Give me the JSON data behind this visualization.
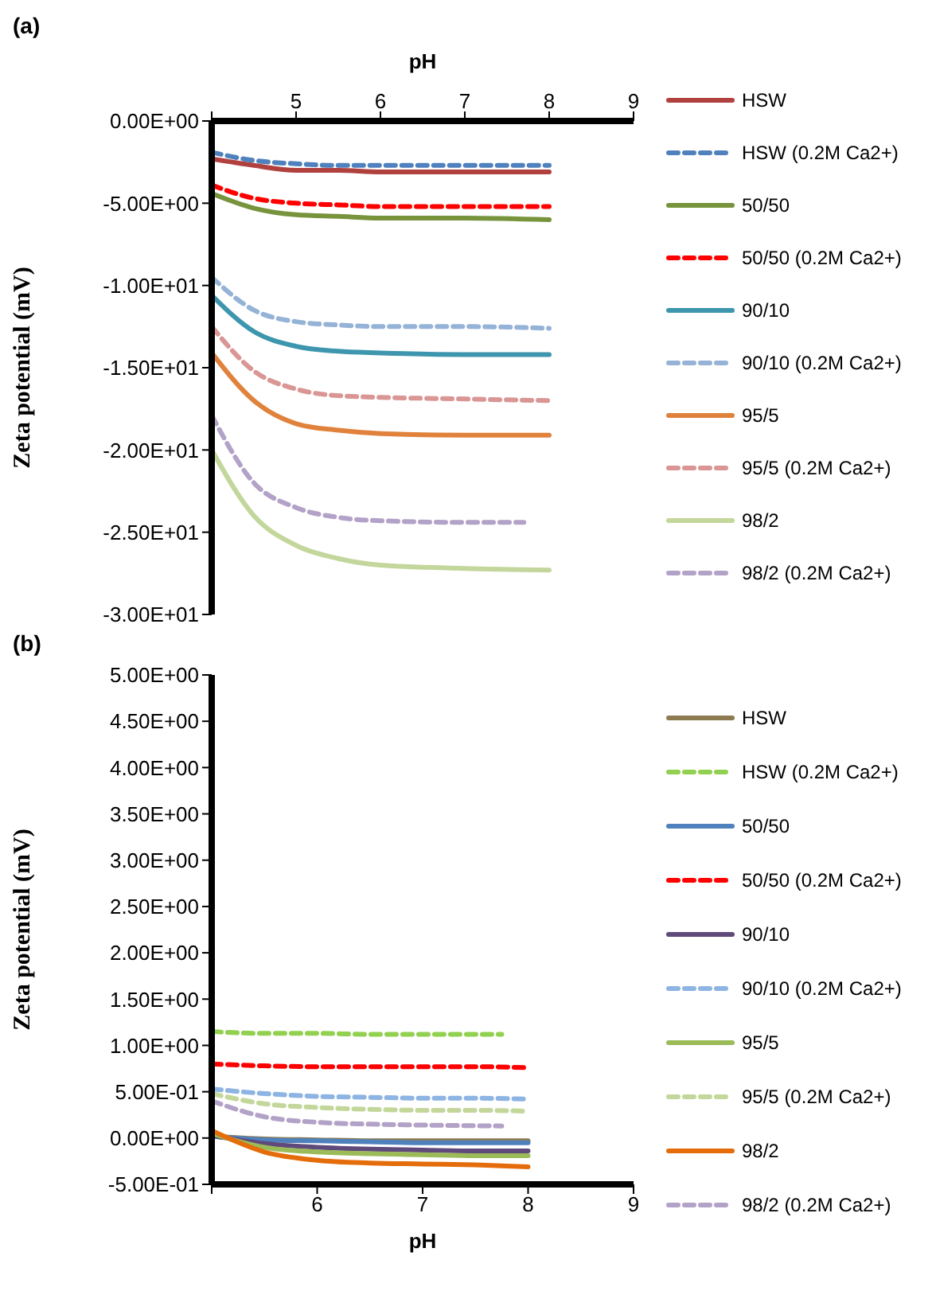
{
  "chart_data": [
    {
      "type": "line",
      "title": "(a)",
      "xlabel": "pH",
      "ylabel": "Zeta potential (mV)",
      "xlim": [
        4,
        9
      ],
      "xticks": [
        {
          "value": 4,
          "label": null
        },
        5,
        6,
        7,
        8,
        9
      ],
      "ylim": [
        -30,
        0
      ],
      "yticks": [
        {
          "value": -30,
          "label": "-3.00E+01"
        },
        {
          "value": -25,
          "label": "-2.50E+01"
        },
        {
          "value": -20,
          "label": "-2.00E+01"
        },
        {
          "value": -15,
          "label": "-1.50E+01"
        },
        {
          "value": -10,
          "label": "-1.00E+01"
        },
        {
          "value": -5,
          "label": "-5.00E+00"
        },
        {
          "value": 0,
          "label": "0.00E+00"
        }
      ],
      "legend": "right",
      "x": [
        4,
        4.5,
        5,
        5.5,
        6,
        7,
        8
      ],
      "series": [
        {
          "name": "HSW",
          "color": "#b0413e",
          "line_style": "solid",
          "values": [
            -2.3,
            -2.7,
            -3.0,
            -3.0,
            -3.1,
            -3.1,
            -3.1
          ]
        },
        {
          "name": "HSW (0.2M Ca2+)",
          "color": "#4f81bd",
          "line_style": "dashed",
          "values": [
            -1.9,
            -2.4,
            -2.6,
            -2.7,
            -2.7,
            -2.7,
            -2.7
          ]
        },
        {
          "name": "50/50",
          "color": "#77933c",
          "line_style": "solid",
          "values": [
            -4.4,
            -5.3,
            -5.7,
            -5.8,
            -5.9,
            -5.9,
            -6.0
          ]
        },
        {
          "name": "50/50 (0.2M Ca2+)",
          "color": "#ff0000",
          "line_style": "dashed",
          "values": [
            -3.9,
            -4.7,
            -5.0,
            -5.1,
            -5.2,
            -5.2,
            -5.2
          ]
        },
        {
          "name": "90/10",
          "color": "#3d96ae",
          "line_style": "solid",
          "values": [
            -10.6,
            -12.8,
            -13.7,
            -14.0,
            -14.1,
            -14.2,
            -14.2
          ]
        },
        {
          "name": "90/10 (0.2M Ca2+)",
          "color": "#95b3d7",
          "line_style": "dashed",
          "values": [
            -9.5,
            -11.5,
            -12.2,
            -12.4,
            -12.5,
            -12.5,
            -12.6
          ]
        },
        {
          "name": "95/5",
          "color": "#e0823c",
          "line_style": "solid",
          "values": [
            -14.1,
            -17.0,
            -18.4,
            -18.8,
            -19.0,
            -19.1,
            -19.1
          ]
        },
        {
          "name": "95/5 (0.2M Ca2+)",
          "color": "#d99694",
          "line_style": "dashed",
          "values": [
            -12.5,
            -15.2,
            -16.3,
            -16.7,
            -16.8,
            -16.9,
            -17.0
          ]
        },
        {
          "name": "98/2",
          "color": "#c3d69b",
          "line_style": "solid",
          "values": [
            -20,
            -24.0,
            -25.8,
            -26.6,
            -27.0,
            -27.2,
            -27.3
          ]
        },
        {
          "name": "98/2 (0.2M Ca2+)",
          "color": "#b3a2c7",
          "line_style": "dashed",
          "x": [
            4,
            4.5,
            5,
            5.5,
            6,
            7,
            7.7
          ],
          "values": [
            -17.9,
            -22.0,
            -23.5,
            -24.1,
            -24.3,
            -24.4,
            -24.4
          ]
        }
      ]
    },
    {
      "type": "line",
      "title": "(b)",
      "xlabel": "pH",
      "ylabel": "Zeta potential (mV)",
      "xlim": [
        5,
        9
      ],
      "xticks": [
        {
          "value": 5,
          "label": null
        },
        6,
        7,
        8,
        9
      ],
      "ylim": [
        -0.5,
        5
      ],
      "yticks": [
        {
          "value": -0.5,
          "label": "-5.00E-01"
        },
        {
          "value": 0,
          "label": "0.00E+00"
        },
        {
          "value": 0.5,
          "label": "5.00E-01"
        },
        {
          "value": 1,
          "label": "1.00E+00"
        },
        {
          "value": 1.5,
          "label": "1.50E+00"
        },
        {
          "value": 2,
          "label": "2.00E+00"
        },
        {
          "value": 2.5,
          "label": "2.50E+00"
        },
        {
          "value": 3,
          "label": "3.00E+00"
        },
        {
          "value": 3.5,
          "label": "3.50E+00"
        },
        {
          "value": 4,
          "label": "4.00E+00"
        },
        {
          "value": 4.5,
          "label": "4.50E+00"
        },
        {
          "value": 5,
          "label": "5.00E+00"
        }
      ],
      "legend": "right",
      "x": [
        5,
        5.5,
        6,
        6.5,
        7,
        7.5,
        8
      ],
      "series": [
        {
          "name": "HSW",
          "color": "#8c7b50",
          "line_style": "solid",
          "values": [
            0.02,
            -0.01,
            -0.02,
            -0.03,
            -0.03,
            -0.03,
            -0.03
          ]
        },
        {
          "name": "HSW (0.2M Ca2+)",
          "color": "#92d050",
          "line_style": "dashed",
          "x": [
            5,
            5.5,
            6,
            6.5,
            7,
            7.75
          ],
          "values": [
            1.15,
            1.13,
            1.13,
            1.12,
            1.12,
            1.12
          ]
        },
        {
          "name": "50/50",
          "color": "#4f81bd",
          "line_style": "solid",
          "values": [
            0.02,
            -0.02,
            -0.03,
            -0.04,
            -0.05,
            -0.05,
            -0.05
          ]
        },
        {
          "name": "50/50 (0.2M Ca2+)",
          "color": "#ff0000",
          "line_style": "dashed",
          "values": [
            0.8,
            0.78,
            0.77,
            0.77,
            0.77,
            0.77,
            0.76
          ]
        },
        {
          "name": "90/10",
          "color": "#604a7b",
          "line_style": "solid",
          "values": [
            0.03,
            -0.06,
            -0.1,
            -0.12,
            -0.13,
            -0.14,
            -0.14
          ]
        },
        {
          "name": "90/10 (0.2M Ca2+)",
          "color": "#8db4e2",
          "line_style": "dashed",
          "values": [
            0.53,
            0.48,
            0.45,
            0.44,
            0.43,
            0.43,
            0.42
          ]
        },
        {
          "name": "95/5",
          "color": "#9bbb59",
          "line_style": "solid",
          "values": [
            0.05,
            -0.1,
            -0.15,
            -0.17,
            -0.18,
            -0.19,
            -0.19
          ]
        },
        {
          "name": "95/5 (0.2M Ca2+)",
          "color": "#c4d79b",
          "line_style": "dashed",
          "values": [
            0.48,
            0.37,
            0.33,
            0.31,
            0.3,
            0.3,
            0.29
          ]
        },
        {
          "name": "98/2",
          "color": "#e46c0a",
          "line_style": "solid",
          "values": [
            0.08,
            -0.15,
            -0.24,
            -0.27,
            -0.28,
            -0.29,
            -0.31
          ]
        },
        {
          "name": "98/2 (0.2M Ca2+)",
          "color": "#b3a2c7",
          "line_style": "dashed",
          "x": [
            5,
            5.5,
            6,
            6.5,
            7,
            7.75
          ],
          "values": [
            0.4,
            0.23,
            0.17,
            0.15,
            0.14,
            0.13
          ]
        }
      ]
    }
  ]
}
